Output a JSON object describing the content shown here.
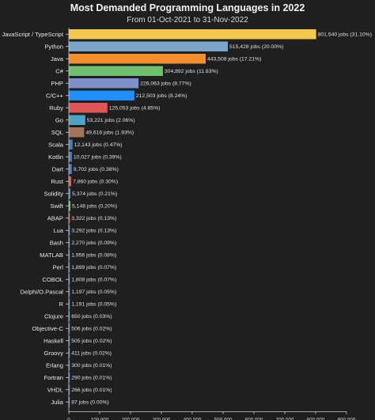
{
  "chart_data": {
    "type": "bar",
    "orientation": "horizontal",
    "title": "Most Demanded Programming Languages in 2022",
    "subtitle": "From 01-Oct-2021 to 31-Nov-2022",
    "xlabel": "",
    "ylabel": "",
    "xlim": [
      0,
      900000
    ],
    "x_ticks": [
      "0",
      "100,000",
      "200,000",
      "300,000",
      "400,000",
      "500,000",
      "600,000",
      "700,000",
      "800,000",
      "900,000"
    ],
    "grid": false,
    "bars": [
      {
        "category": "JavaScript / TypeScript",
        "value": 801540,
        "label": "801,540 jobs (31.10%)",
        "color": "#f2c94c"
      },
      {
        "category": "Python",
        "value": 515428,
        "label": "515,428 jobs (20.00%)",
        "color": "#7aa6c9"
      },
      {
        "category": "Java",
        "value": 443508,
        "label": "443,508 jobs (17.21%)",
        "color": "#f28e2b"
      },
      {
        "category": "C#",
        "value": 304892,
        "label": "304,892 jobs (11.83%)",
        "color": "#6fc06f"
      },
      {
        "category": "PHP",
        "value": 226063,
        "label": "226,063 jobs (8.77%)",
        "color": "#7f8fc9"
      },
      {
        "category": "C/C++",
        "value": 212503,
        "label": "212,503 jobs (8.24%)",
        "color": "#1e90ff"
      },
      {
        "category": "Ruby",
        "value": 125053,
        "label": "125,053 jobs (4.85%)",
        "color": "#e05555"
      },
      {
        "category": "Go",
        "value": 53221,
        "label": "53,221 jobs (2.06%)",
        "color": "#4fa3c7"
      },
      {
        "category": "SQL",
        "value": 49616,
        "label": "49,616 jobs (1.93%)",
        "color": "#a3735a"
      },
      {
        "category": "Scala",
        "value": 12143,
        "label": "12,143 jobs (0.47%)",
        "color": "#4f7fb0"
      },
      {
        "category": "Kotlin",
        "value": 10027,
        "label": "10,027 jobs (0.39%)",
        "color": "#4f7fb0"
      },
      {
        "category": "Dart",
        "value": 9702,
        "label": "9,702 jobs (0.38%)",
        "color": "#4f7fb0"
      },
      {
        "category": "Rust",
        "value": 7860,
        "label": "7,860 jobs (0.30%)",
        "color": "#e05555"
      },
      {
        "category": "Solidity",
        "value": 5374,
        "label": "5,374 jobs (0.21%)",
        "color": "#4f7fb0"
      },
      {
        "category": "Swift",
        "value": 5148,
        "label": "5,148 jobs (0.20%)",
        "color": "#6fc06f"
      },
      {
        "category": "ABAP",
        "value": 3322,
        "label": "3,322 jobs (0.13%)",
        "color": "#e05555"
      },
      {
        "category": "Lua",
        "value": 3292,
        "label": "3,292 jobs (0.13%)",
        "color": "#4f7fb0"
      },
      {
        "category": "Bash",
        "value": 2270,
        "label": "2,270 jobs (0.09%)",
        "color": "#4f7fb0"
      },
      {
        "category": "MATLAB",
        "value": 1956,
        "label": "1,956 jobs (0.08%)",
        "color": "#4f7fb0"
      },
      {
        "category": "Perl",
        "value": 1899,
        "label": "1,899 jobs (0.07%)",
        "color": "#4f7fb0"
      },
      {
        "category": "COBOL",
        "value": 1808,
        "label": "1,808 jobs (0.07%)",
        "color": "#4f7fb0"
      },
      {
        "category": "Delphi/O.Pascal",
        "value": 1197,
        "label": "1,197 jobs (0.05%)",
        "color": "#4f7fb0"
      },
      {
        "category": "R",
        "value": 1191,
        "label": "1,191 jobs (0.05%)",
        "color": "#4f7fb0"
      },
      {
        "category": "Clojure",
        "value": 650,
        "label": "650 jobs (0.03%)",
        "color": "#4f7fb0"
      },
      {
        "category": "Objective-C",
        "value": 506,
        "label": "506 jobs (0.02%)",
        "color": "#4f7fb0"
      },
      {
        "category": "Haskell",
        "value": 505,
        "label": "505 jobs (0.02%)",
        "color": "#4f7fb0"
      },
      {
        "category": "Groovy",
        "value": 411,
        "label": "411 jobs (0.02%)",
        "color": "#4f7fb0"
      },
      {
        "category": "Erlang",
        "value": 300,
        "label": "300 jobs (0.01%)",
        "color": "#4f7fb0"
      },
      {
        "category": "Fortran",
        "value": 290,
        "label": "290 jobs (0.01%)",
        "color": "#4f7fb0"
      },
      {
        "category": "VHDL",
        "value": 266,
        "label": "266 jobs (0.01%)",
        "color": "#4f7fb0"
      },
      {
        "category": "Julia",
        "value": 87,
        "label": "87 jobs (0.00%)",
        "color": "#4f7fb0"
      }
    ]
  }
}
